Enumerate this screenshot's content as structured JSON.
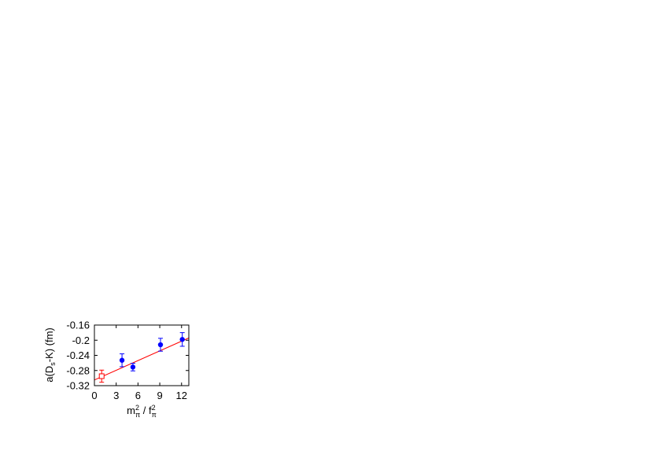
{
  "chart_data": {
    "type": "scatter",
    "title": "",
    "xlabel": "m²π / f²π",
    "ylabel": "a(Ds-K) (fm)",
    "xlim": [
      0,
      13
    ],
    "ylim": [
      -0.32,
      -0.16
    ],
    "xticks": [
      "0",
      "3",
      "6",
      "9",
      "12"
    ],
    "yticks": [
      "-0.32",
      "-0.28",
      "-0.24",
      "-0.2",
      "-0.16"
    ],
    "grid": false,
    "series": [
      {
        "marker": "filled-circle",
        "color": "#0000ff",
        "points": [
          {
            "x": 3.8,
            "y": -0.253,
            "err": 0.017
          },
          {
            "x": 5.3,
            "y": -0.271,
            "err": 0.01
          },
          {
            "x": 9.1,
            "y": -0.212,
            "err": 0.017
          },
          {
            "x": 12.1,
            "y": -0.198,
            "err": 0.018
          }
        ]
      },
      {
        "marker": "open-square",
        "color": "#ff0000",
        "points": [
          {
            "x": 1.0,
            "y": -0.295,
            "err": 0.016
          }
        ]
      }
    ],
    "fit_line": {
      "color": "#ff0000",
      "x": [
        0,
        13
      ],
      "y": [
        -0.305,
        -0.194
      ]
    }
  }
}
